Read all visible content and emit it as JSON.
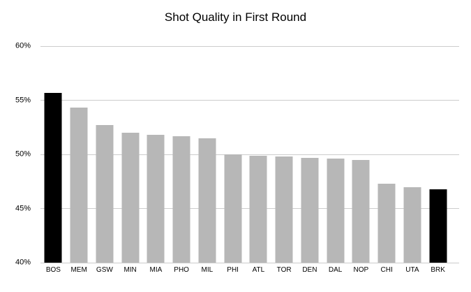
{
  "figure": {
    "background": "#ffffff"
  },
  "chart_data": {
    "type": "bar",
    "title": "Shot Quality in First Round",
    "categories": [
      "BOS",
      "MEM",
      "GSW",
      "MIN",
      "MIA",
      "PHO",
      "MIL",
      "PHI",
      "ATL",
      "TOR",
      "DEN",
      "DAL",
      "NOP",
      "CHI",
      "UTA",
      "BRK"
    ],
    "values": [
      55.7,
      54.3,
      52.7,
      52.0,
      51.8,
      51.7,
      51.5,
      50.0,
      49.9,
      49.8,
      49.7,
      49.6,
      49.5,
      47.3,
      47.0,
      46.8
    ],
    "highlighted_categories": [
      "BOS",
      "BRK"
    ],
    "xlabel": "",
    "ylabel": "",
    "ylim": [
      40,
      60
    ],
    "yticks": [
      40,
      45,
      50,
      55,
      60
    ],
    "ytick_labels": [
      "40%",
      "45%",
      "50%",
      "55%",
      "60%"
    ],
    "grid": true,
    "legend": "none",
    "colors": {
      "bar_default": "#b7b7b7",
      "bar_highlight": "#000000",
      "gridline": "#cccccc",
      "axis_text": "#000000",
      "title_text": "#000000",
      "background": "#ffffff"
    }
  }
}
